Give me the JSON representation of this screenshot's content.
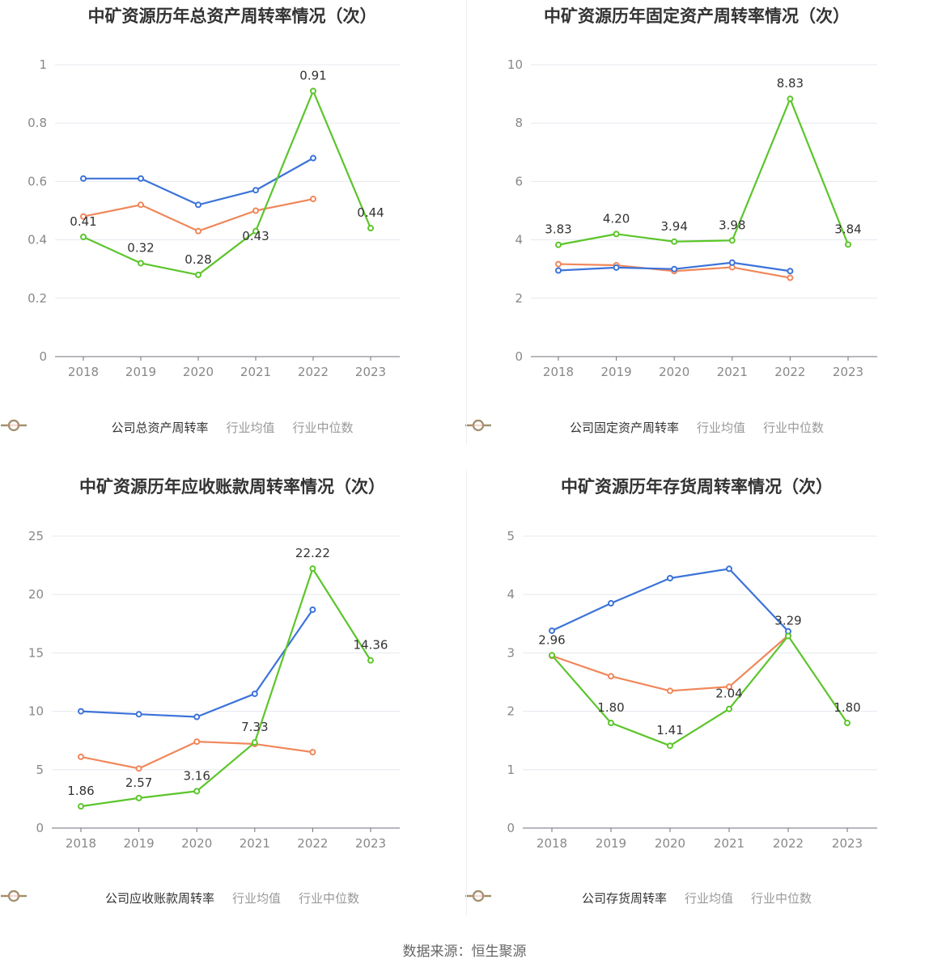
{
  "source": "数据来源：恒生聚源",
  "colors": {
    "company": "#5cc52b",
    "avg": "#3c73d9",
    "median": "#f0875a"
  },
  "chart_data": [
    {
      "type": "line",
      "title": "中矿资源历年总资产周转率情况（次）",
      "categories": [
        "2018",
        "2019",
        "2020",
        "2021",
        "2022",
        "2023"
      ],
      "ylim": [
        0,
        1
      ],
      "yticks": [
        "0",
        "0.2",
        "0.4",
        "0.6",
        "0.8",
        "1"
      ],
      "ytick_values": [
        0,
        0.2,
        0.4,
        0.6,
        0.8,
        1
      ],
      "series": [
        {
          "key": "company",
          "name": "公司总资产周转率",
          "values": [
            0.41,
            0.32,
            0.28,
            0.43,
            0.91,
            0.44
          ],
          "labels": [
            "0.41",
            "0.32",
            "0.28",
            "0.43",
            "0.91",
            "0.44"
          ]
        },
        {
          "key": "avg",
          "name": "行业均值",
          "values": [
            0.61,
            0.61,
            0.52,
            0.57,
            0.68,
            null
          ]
        },
        {
          "key": "median",
          "name": "行业中位数",
          "values": [
            0.48,
            0.52,
            0.43,
            0.5,
            0.54,
            null
          ]
        }
      ]
    },
    {
      "type": "line",
      "title": "中矿资源历年固定资产周转率情况（次）",
      "categories": [
        "2018",
        "2019",
        "2020",
        "2021",
        "2022",
        "2023"
      ],
      "ylim": [
        0,
        10
      ],
      "yticks": [
        "0",
        "2",
        "4",
        "6",
        "8",
        "10"
      ],
      "ytick_values": [
        0,
        2,
        4,
        6,
        8,
        10
      ],
      "series": [
        {
          "key": "company",
          "name": "公司固定资产周转率",
          "values": [
            3.83,
            4.2,
            3.94,
            3.98,
            8.83,
            3.84
          ],
          "labels": [
            "3.83",
            "4.20",
            "3.94",
            "3.98",
            "8.83",
            "3.84"
          ]
        },
        {
          "key": "avg",
          "name": "行业均值",
          "values": [
            2.95,
            3.05,
            3.0,
            3.22,
            2.93,
            null
          ]
        },
        {
          "key": "median",
          "name": "行业中位数",
          "values": [
            3.17,
            3.13,
            2.93,
            3.06,
            2.7,
            null
          ]
        }
      ]
    },
    {
      "type": "line",
      "title": "中矿资源历年应收账款周转率情况（次）",
      "categories": [
        "2018",
        "2019",
        "2020",
        "2021",
        "2022",
        "2023"
      ],
      "ylim": [
        0,
        25
      ],
      "yticks": [
        "0",
        "5",
        "10",
        "15",
        "20",
        "25"
      ],
      "ytick_values": [
        0,
        5,
        10,
        15,
        20,
        25
      ],
      "series": [
        {
          "key": "company",
          "name": "公司应收账款周转率",
          "values": [
            1.86,
            2.57,
            3.16,
            7.33,
            22.22,
            14.36
          ],
          "labels": [
            "1.86",
            "2.57",
            "3.16",
            "7.33",
            "22.22",
            "14.36"
          ]
        },
        {
          "key": "avg",
          "name": "行业均值",
          "values": [
            10.0,
            9.75,
            9.52,
            11.5,
            18.7,
            null
          ]
        },
        {
          "key": "median",
          "name": "行业中位数",
          "values": [
            6.1,
            5.1,
            7.4,
            7.2,
            6.5,
            null
          ]
        }
      ]
    },
    {
      "type": "line",
      "title": "中矿资源历年存货周转率情况（次）",
      "categories": [
        "2018",
        "2019",
        "2020",
        "2021",
        "2022",
        "2023"
      ],
      "ylim": [
        0,
        5
      ],
      "yticks": [
        "0",
        "1",
        "2",
        "3",
        "4",
        "5"
      ],
      "ytick_values": [
        0,
        1,
        2,
        3,
        4,
        5
      ],
      "series": [
        {
          "key": "company",
          "name": "公司存货周转率",
          "values": [
            2.96,
            1.8,
            1.41,
            2.04,
            3.29,
            1.8
          ],
          "labels": [
            "2.96",
            "1.80",
            "1.41",
            "2.04",
            "3.29",
            "1.80"
          ]
        },
        {
          "key": "avg",
          "name": "行业均值",
          "values": [
            3.38,
            3.85,
            4.28,
            4.44,
            3.37,
            null
          ]
        },
        {
          "key": "median",
          "name": "行业中位数",
          "values": [
            2.95,
            2.6,
            2.35,
            2.42,
            3.3,
            null
          ]
        }
      ]
    }
  ]
}
